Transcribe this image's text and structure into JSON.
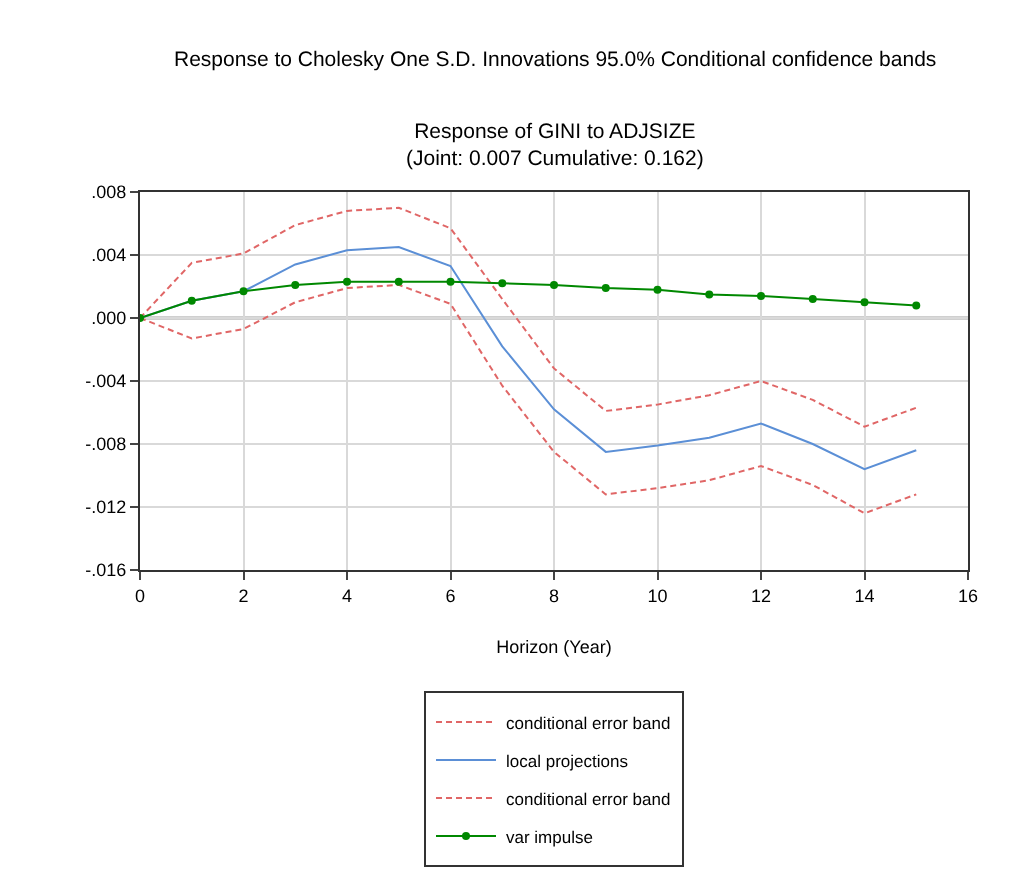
{
  "chart_data": {
    "type": "line",
    "title": "Response to Cholesky One S.D. Innovations 95.0% Conditional confidence bands",
    "subtitle": "Response of GINI to ADJSIZE\n(Joint: 0.007 Cumulative: 0.162)",
    "xlabel": "Horizon (Year)",
    "x": [
      0,
      1,
      2,
      3,
      4,
      5,
      6,
      7,
      8,
      9,
      10,
      11,
      12,
      13,
      14,
      15
    ],
    "series": [
      {
        "name": "conditional error band",
        "color": "#e06666",
        "line_style": "dashed",
        "marker": "none",
        "values": [
          0,
          0.0035,
          0.0041,
          0.0059,
          0.0068,
          0.007,
          0.0057,
          0.0012,
          -0.0032,
          -0.0059,
          -0.0055,
          -0.0049,
          -0.004,
          -0.0052,
          -0.0069,
          -0.0057
        ]
      },
      {
        "name": "local projections",
        "color": "#5b8fd6",
        "line_style": "solid",
        "marker": "none",
        "values": [
          0,
          0.0011,
          0.0017,
          0.0034,
          0.0043,
          0.0045,
          0.0033,
          -0.0018,
          -0.0058,
          -0.0085,
          -0.0081,
          -0.0076,
          -0.0067,
          -0.008,
          -0.0096,
          -0.0084
        ]
      },
      {
        "name": "conditional error band",
        "color": "#e06666",
        "line_style": "dashed",
        "marker": "none",
        "values": [
          0,
          -0.0013,
          -0.0007,
          0.001,
          0.0019,
          0.0021,
          0.0009,
          -0.0043,
          -0.0085,
          -0.0112,
          -0.0108,
          -0.0103,
          -0.0094,
          -0.0106,
          -0.0124,
          -0.0112
        ]
      },
      {
        "name": "var impulse",
        "color": "#008800",
        "line_style": "solid",
        "marker": "circle",
        "values": [
          0,
          0.0011,
          0.0017,
          0.0021,
          0.0023,
          0.0023,
          0.0023,
          0.0022,
          0.0021,
          0.0019,
          0.0018,
          0.0015,
          0.0014,
          0.0012,
          0.001,
          0.0008
        ]
      }
    ],
    "xlim": [
      0,
      16
    ],
    "xticks": [
      0,
      2,
      4,
      6,
      8,
      10,
      12,
      14,
      16
    ],
    "ylim": [
      -0.016,
      0.008
    ],
    "yticks": [
      {
        "value": -0.016,
        "label": "-.016"
      },
      {
        "value": -0.012,
        "label": "-.012"
      },
      {
        "value": -0.008,
        "label": "-.008"
      },
      {
        "value": -0.004,
        "label": "-.004"
      },
      {
        "value": 0,
        "label": ".000"
      },
      {
        "value": 0.004,
        "label": ".004"
      },
      {
        "value": 0.008,
        "label": ".008"
      }
    ],
    "ref_lines": [
      {
        "axis": "y",
        "value": 0,
        "color": "#a0a0a0"
      }
    ],
    "grid": true,
    "legend": "bottom"
  }
}
